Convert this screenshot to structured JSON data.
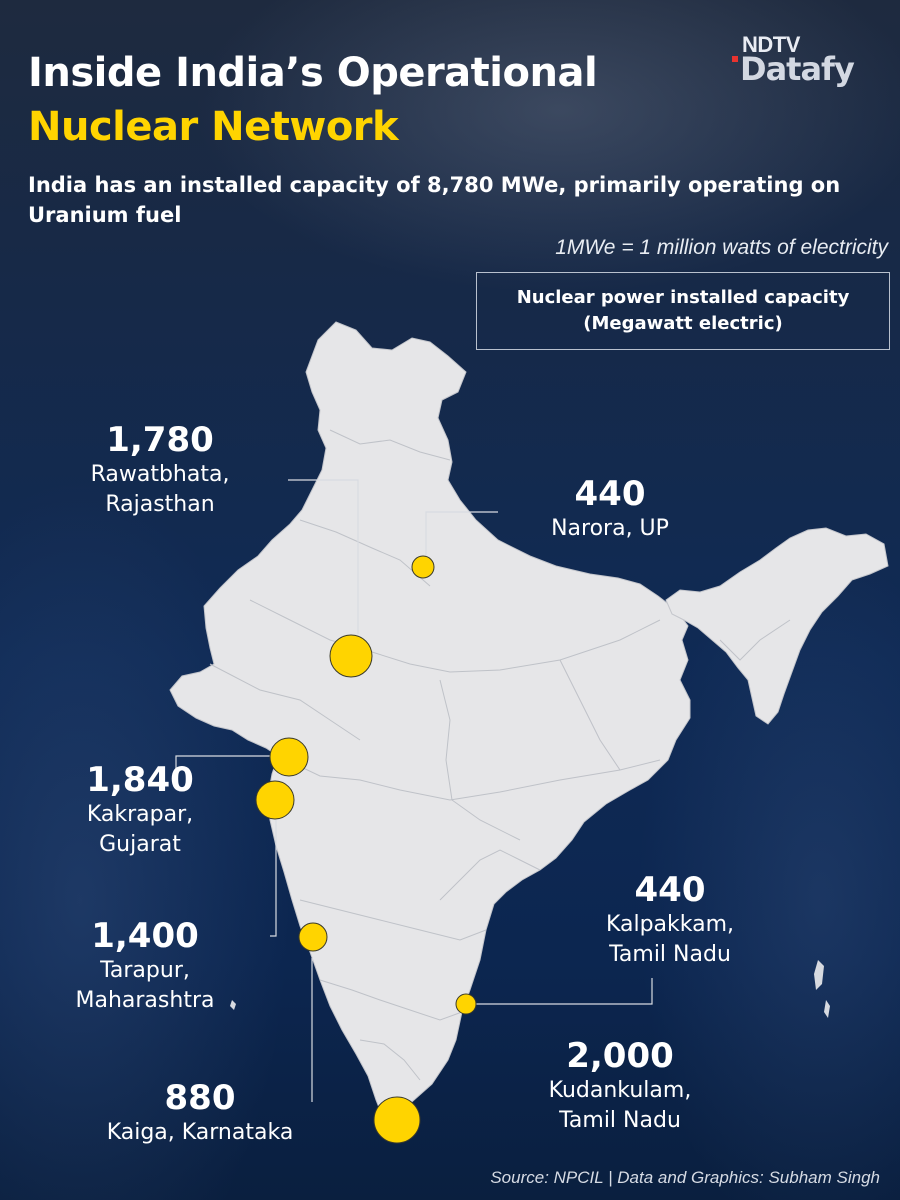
{
  "header": {
    "title_line1": "Inside India’s Operational",
    "title_line2": "Nuclear Network",
    "subtitle": "India has an installed capacity of 8,780 MWe, primarily operating on Uranium fuel",
    "note": "1MWe = 1 million watts of electricity"
  },
  "logo": {
    "brand": "NDTV",
    "product": "Datafy"
  },
  "legend": {
    "line1": "Nuclear power installed capacity",
    "line2": "(Megawatt electric)"
  },
  "plants": [
    {
      "id": "rawatbhata",
      "value": "1,780",
      "place": "Rawatbhata,\nRajasthan",
      "capacity_mwe": 1780
    },
    {
      "id": "narora",
      "value": "440",
      "place": "Narora, UP",
      "capacity_mwe": 440
    },
    {
      "id": "kakrapar",
      "value": "1,840",
      "place": "Kakrapar,\nGujarat",
      "capacity_mwe": 1840
    },
    {
      "id": "tarapur",
      "value": "1,400",
      "place": "Tarapur,\nMaharashtra",
      "capacity_mwe": 1400
    },
    {
      "id": "kaiga",
      "value": "880",
      "place": "Kaiga, Karnataka",
      "capacity_mwe": 880
    },
    {
      "id": "kalpakkam",
      "value": "440",
      "place": "Kalpakkam,\nTamil Nadu",
      "capacity_mwe": 440
    },
    {
      "id": "kudankulam",
      "value": "2,000",
      "place": "Kudankulam,\nTamil Nadu",
      "capacity_mwe": 2000
    }
  ],
  "colors": {
    "marker": "#ffd400",
    "land": "#e6e6e8",
    "title_accent": "#ffd400",
    "background": "#0f2a55"
  },
  "source": "Source: NPCIL | Data and Graphics: Subham Singh"
}
